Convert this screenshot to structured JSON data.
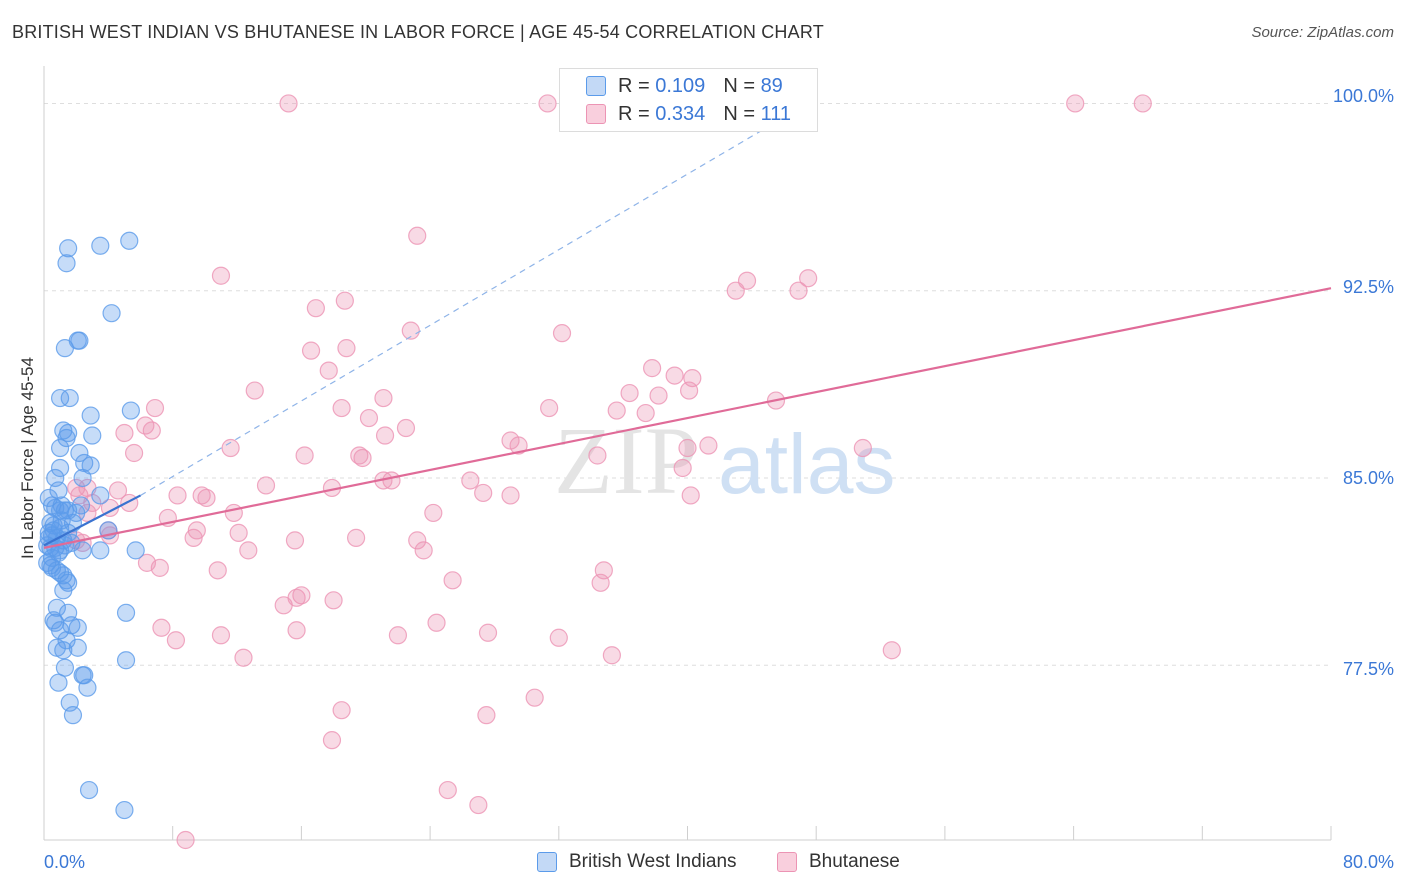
{
  "title": "BRITISH WEST INDIAN VS BHUTANESE IN LABOR FORCE | AGE 45-54 CORRELATION CHART",
  "source": "Source: ZipAtlas.com",
  "watermark": {
    "zip": "ZIP",
    "atlas": "atlas"
  },
  "legend": {
    "rows": [
      {
        "r_label": "R =",
        "r_value": "0.109",
        "n_label": "N =",
        "n_value": "89"
      },
      {
        "r_label": "R =",
        "r_value": "0.334",
        "n_label": "N =",
        "n_value": "111"
      }
    ]
  },
  "bottom_legend": [
    "British West Indians",
    "Bhutanese"
  ],
  "colors": {
    "blue": "#5b9bea",
    "blue_line": "#3a73d0",
    "pink": "#ec94b4",
    "pink_line": "#e06b98",
    "label_blue": "#3b78d6"
  },
  "chart_data": {
    "type": "scatter",
    "xlabel": "",
    "ylabel": "In Labor Force | Age 45-54",
    "xlim": [
      0,
      80
    ],
    "ylim": [
      70.5,
      101.5
    ],
    "x_tick_labels": [
      "0.0%",
      "80.0%"
    ],
    "y_ticks": [
      77.5,
      85.0,
      92.5,
      100.0
    ],
    "y_tick_labels": [
      "77.5%",
      "85.0%",
      "92.5%",
      "100.0%"
    ],
    "series": [
      {
        "name": "British West Indians",
        "r": 0.109,
        "n": 89,
        "trend": {
          "x": [
            0,
            6
          ],
          "y": [
            82.3,
            84.3
          ]
        },
        "trend_ext": {
          "x": [
            6,
            48
          ],
          "y": [
            84.3,
            100.2
          ]
        },
        "points": [
          [
            1.5,
            94.2
          ],
          [
            3.5,
            94.3
          ],
          [
            5.3,
            94.5
          ],
          [
            1.4,
            93.6
          ],
          [
            4.2,
            91.6
          ],
          [
            1.3,
            90.2
          ],
          [
            2.1,
            90.5
          ],
          [
            2.2,
            90.5
          ],
          [
            1.0,
            88.2
          ],
          [
            1.6,
            88.2
          ],
          [
            5.4,
            87.7
          ],
          [
            2.9,
            87.5
          ],
          [
            1.2,
            86.9
          ],
          [
            1.5,
            86.8
          ],
          [
            3.0,
            86.7
          ],
          [
            1.4,
            86.6
          ],
          [
            1.0,
            86.2
          ],
          [
            2.2,
            86.0
          ],
          [
            2.5,
            85.6
          ],
          [
            2.9,
            85.5
          ],
          [
            1.0,
            85.4
          ],
          [
            0.7,
            85.0
          ],
          [
            2.4,
            85.0
          ],
          [
            0.9,
            84.5
          ],
          [
            3.5,
            84.3
          ],
          [
            0.5,
            83.9
          ],
          [
            0.7,
            83.8
          ],
          [
            1.0,
            83.7
          ],
          [
            1.3,
            83.7
          ],
          [
            1.5,
            83.7
          ],
          [
            2.0,
            83.6
          ],
          [
            0.4,
            83.2
          ],
          [
            0.6,
            83.1
          ],
          [
            1.0,
            83.0
          ],
          [
            0.3,
            82.8
          ],
          [
            0.5,
            82.7
          ],
          [
            0.8,
            82.6
          ],
          [
            1.2,
            82.5
          ],
          [
            1.5,
            82.8
          ],
          [
            0.2,
            82.3
          ],
          [
            0.4,
            82.2
          ],
          [
            0.7,
            82.2
          ],
          [
            1.0,
            82.1
          ],
          [
            1.3,
            82.3
          ],
          [
            2.4,
            82.1
          ],
          [
            3.5,
            82.1
          ],
          [
            5.7,
            82.1
          ],
          [
            4.0,
            82.9
          ],
          [
            0.2,
            81.6
          ],
          [
            0.4,
            81.5
          ],
          [
            0.5,
            81.4
          ],
          [
            0.8,
            81.3
          ],
          [
            1.0,
            81.2
          ],
          [
            1.2,
            81.1
          ],
          [
            1.4,
            80.9
          ],
          [
            1.5,
            80.8
          ],
          [
            1.2,
            80.5
          ],
          [
            0.8,
            79.8
          ],
          [
            1.5,
            79.6
          ],
          [
            5.1,
            79.6
          ],
          [
            0.6,
            79.3
          ],
          [
            0.7,
            79.2
          ],
          [
            1.7,
            79.1
          ],
          [
            1.0,
            78.9
          ],
          [
            2.1,
            79.0
          ],
          [
            1.4,
            78.5
          ],
          [
            0.8,
            78.2
          ],
          [
            1.2,
            78.1
          ],
          [
            2.1,
            78.2
          ],
          [
            5.1,
            77.7
          ],
          [
            1.3,
            77.4
          ],
          [
            2.4,
            77.1
          ],
          [
            2.5,
            77.1
          ],
          [
            0.9,
            76.8
          ],
          [
            2.7,
            76.6
          ],
          [
            1.6,
            76.0
          ],
          [
            1.8,
            75.5
          ],
          [
            2.8,
            72.5
          ],
          [
            5.0,
            71.7
          ],
          [
            0.3,
            82.6
          ],
          [
            0.6,
            82.9
          ],
          [
            1.1,
            83.3
          ],
          [
            0.9,
            82.0
          ],
          [
            0.5,
            81.8
          ],
          [
            1.8,
            83.2
          ],
          [
            2.3,
            83.9
          ],
          [
            0.3,
            84.2
          ],
          [
            1.7,
            82.4
          ],
          [
            1.1,
            83.9
          ]
        ]
      },
      {
        "name": "Bhutanese",
        "r": 0.334,
        "n": 111,
        "trend": {
          "x": [
            0,
            80
          ],
          "y": [
            82.2,
            92.6
          ]
        },
        "points": [
          [
            15.2,
            100.0
          ],
          [
            31.3,
            100.0
          ],
          [
            64.1,
            100.0
          ],
          [
            68.3,
            100.0
          ],
          [
            23.2,
            94.7
          ],
          [
            11.0,
            93.1
          ],
          [
            43.7,
            92.9
          ],
          [
            43.0,
            92.5
          ],
          [
            18.7,
            92.1
          ],
          [
            16.9,
            91.8
          ],
          [
            22.8,
            90.9
          ],
          [
            32.2,
            90.8
          ],
          [
            16.6,
            90.1
          ],
          [
            18.8,
            90.2
          ],
          [
            37.8,
            89.4
          ],
          [
            39.2,
            89.1
          ],
          [
            40.3,
            89.0
          ],
          [
            17.7,
            89.3
          ],
          [
            40.1,
            88.5
          ],
          [
            38.2,
            88.3
          ],
          [
            36.4,
            88.4
          ],
          [
            13.1,
            88.5
          ],
          [
            21.1,
            88.2
          ],
          [
            45.5,
            88.1
          ],
          [
            31.4,
            87.8
          ],
          [
            6.9,
            87.8
          ],
          [
            18.5,
            87.8
          ],
          [
            35.6,
            87.7
          ],
          [
            37.4,
            87.6
          ],
          [
            20.2,
            87.4
          ],
          [
            22.5,
            87.0
          ],
          [
            6.3,
            87.1
          ],
          [
            6.7,
            86.9
          ],
          [
            5.0,
            86.8
          ],
          [
            21.2,
            86.7
          ],
          [
            29.0,
            86.5
          ],
          [
            29.5,
            86.3
          ],
          [
            11.6,
            86.2
          ],
          [
            41.3,
            86.3
          ],
          [
            40.0,
            86.2
          ],
          [
            5.6,
            86.0
          ],
          [
            16.2,
            85.9
          ],
          [
            19.6,
            85.9
          ],
          [
            34.4,
            85.9
          ],
          [
            19.8,
            85.8
          ],
          [
            39.7,
            85.4
          ],
          [
            13.8,
            84.7
          ],
          [
            2.0,
            84.6
          ],
          [
            2.7,
            84.6
          ],
          [
            4.6,
            84.5
          ],
          [
            17.9,
            84.6
          ],
          [
            21.1,
            84.9
          ],
          [
            21.6,
            84.9
          ],
          [
            2.2,
            84.3
          ],
          [
            8.3,
            84.3
          ],
          [
            9.8,
            84.3
          ],
          [
            29.0,
            84.3
          ],
          [
            40.2,
            84.3
          ],
          [
            10.1,
            84.2
          ],
          [
            5.3,
            84.0
          ],
          [
            3.0,
            84.0
          ],
          [
            4.1,
            83.8
          ],
          [
            2.7,
            83.6
          ],
          [
            11.8,
            83.6
          ],
          [
            24.2,
            83.6
          ],
          [
            7.7,
            83.4
          ],
          [
            4.0,
            82.9
          ],
          [
            9.5,
            82.9
          ],
          [
            12.1,
            82.8
          ],
          [
            4.1,
            82.7
          ],
          [
            9.3,
            82.6
          ],
          [
            15.6,
            82.5
          ],
          [
            2.0,
            82.5
          ],
          [
            2.4,
            82.4
          ],
          [
            12.7,
            82.1
          ],
          [
            23.6,
            82.1
          ],
          [
            6.4,
            81.6
          ],
          [
            7.2,
            81.4
          ],
          [
            10.8,
            81.3
          ],
          [
            34.8,
            81.3
          ],
          [
            25.4,
            80.9
          ],
          [
            34.6,
            80.8
          ],
          [
            16.0,
            80.3
          ],
          [
            15.7,
            80.2
          ],
          [
            18.0,
            80.1
          ],
          [
            14.9,
            79.9
          ],
          [
            7.3,
            79.0
          ],
          [
            15.7,
            78.9
          ],
          [
            24.4,
            79.2
          ],
          [
            27.6,
            78.8
          ],
          [
            8.2,
            78.5
          ],
          [
            11.0,
            78.7
          ],
          [
            22.0,
            78.7
          ],
          [
            32.0,
            78.6
          ],
          [
            35.3,
            77.9
          ],
          [
            12.4,
            77.8
          ],
          [
            52.7,
            78.1
          ],
          [
            30.5,
            76.2
          ],
          [
            18.5,
            75.7
          ],
          [
            27.5,
            75.5
          ],
          [
            17.9,
            74.5
          ],
          [
            25.1,
            72.5
          ],
          [
            27.0,
            71.9
          ],
          [
            8.8,
            70.5
          ],
          [
            50.9,
            86.2
          ],
          [
            27.3,
            84.4
          ],
          [
            26.5,
            84.9
          ],
          [
            46.9,
            92.5
          ],
          [
            47.5,
            93.0
          ],
          [
            23.2,
            82.5
          ],
          [
            19.4,
            82.6
          ]
        ]
      }
    ]
  }
}
